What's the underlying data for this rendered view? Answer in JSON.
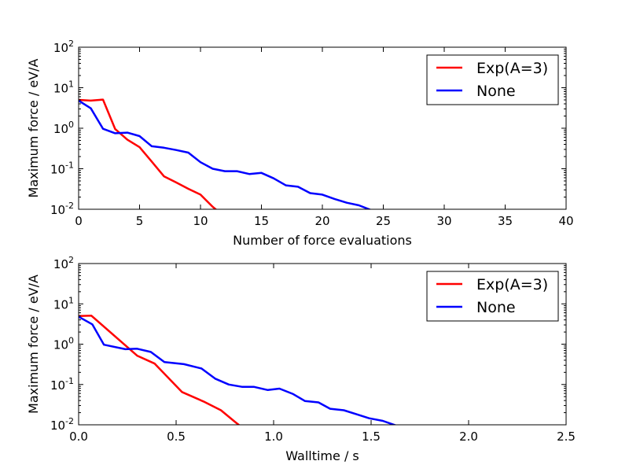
{
  "chart_data": [
    {
      "type": "line",
      "xlabel": "Number of force evaluations",
      "ylabel": "Maximum force / eV/A",
      "xlim": [
        0,
        40
      ],
      "ylim": [
        0.01,
        100
      ],
      "yscale": "log",
      "xticks": [
        "0",
        "5",
        "10",
        "15",
        "20",
        "25",
        "30",
        "35",
        "40"
      ],
      "xtick_values": [
        0,
        5,
        10,
        15,
        20,
        25,
        30,
        35,
        40
      ],
      "yticks": [
        {
          "base": "10",
          "exp": "-2"
        },
        {
          "base": "10",
          "exp": "-1"
        },
        {
          "base": "10",
          "exp": "0"
        },
        {
          "base": "10",
          "exp": "1"
        },
        {
          "base": "10",
          "exp": "2"
        }
      ],
      "ytick_values": [
        0.01,
        0.1,
        1,
        10,
        100
      ],
      "legend_position": "top-right",
      "series": [
        {
          "name": "Exp(A=3)",
          "color": "#ff0000",
          "x": [
            0,
            1,
            2,
            3,
            4,
            5,
            6,
            7,
            8,
            9,
            10,
            11,
            12
          ],
          "y": [
            5.0,
            4.8,
            5.1,
            0.95,
            0.52,
            0.34,
            0.15,
            0.065,
            0.046,
            0.032,
            0.023,
            0.0115,
            0.0065
          ]
        },
        {
          "name": "None",
          "color": "#0000ff",
          "x": [
            0,
            1,
            2,
            3,
            4,
            5,
            6,
            7,
            8,
            9,
            10,
            11,
            12,
            13,
            14,
            15,
            16,
            17,
            18,
            19,
            20,
            21,
            22,
            23,
            24,
            25
          ],
          "y": [
            4.8,
            3.1,
            0.97,
            0.75,
            0.78,
            0.64,
            0.36,
            0.33,
            0.29,
            0.25,
            0.145,
            0.1,
            0.087,
            0.087,
            0.074,
            0.079,
            0.058,
            0.039,
            0.036,
            0.025,
            0.023,
            0.018,
            0.0145,
            0.0125,
            0.0095,
            0.0085
          ]
        }
      ]
    },
    {
      "type": "line",
      "xlabel": "Walltime / s",
      "ylabel": "Maximum force / eV/A",
      "xlim": [
        0,
        2.5
      ],
      "ylim": [
        0.01,
        100
      ],
      "yscale": "log",
      "xticks": [
        "0.0",
        "0.5",
        "1.0",
        "1.5",
        "2.0",
        "2.5"
      ],
      "xtick_values": [
        0,
        0.5,
        1.0,
        1.5,
        2.0,
        2.5
      ],
      "yticks": [
        {
          "base": "10",
          "exp": "-2"
        },
        {
          "base": "10",
          "exp": "-1"
        },
        {
          "base": "10",
          "exp": "0"
        },
        {
          "base": "10",
          "exp": "1"
        },
        {
          "base": "10",
          "exp": "2"
        }
      ],
      "ytick_values": [
        0.01,
        0.1,
        1,
        10,
        100
      ],
      "legend_position": "top-right",
      "series": [
        {
          "name": "Exp(A=3)",
          "color": "#ff0000",
          "x": [
            0,
            0.065,
            0.3,
            0.39,
            0.53,
            0.64,
            0.73,
            0.8,
            0.87
          ],
          "y": [
            5.0,
            5.1,
            0.52,
            0.33,
            0.065,
            0.038,
            0.023,
            0.012,
            0.0065
          ]
        },
        {
          "name": "None",
          "color": "#0000ff",
          "x": [
            0,
            0.07,
            0.13,
            0.24,
            0.3,
            0.37,
            0.44,
            0.54,
            0.63,
            0.7,
            0.77,
            0.84,
            0.9,
            0.97,
            1.03,
            1.1,
            1.16,
            1.23,
            1.29,
            1.36,
            1.43,
            1.49,
            1.56,
            1.63,
            1.69
          ],
          "y": [
            4.8,
            3.1,
            0.97,
            0.75,
            0.77,
            0.64,
            0.36,
            0.32,
            0.25,
            0.14,
            0.1,
            0.087,
            0.087,
            0.073,
            0.079,
            0.058,
            0.039,
            0.036,
            0.025,
            0.023,
            0.018,
            0.0145,
            0.0125,
            0.0095,
            0.0085
          ]
        }
      ]
    }
  ]
}
